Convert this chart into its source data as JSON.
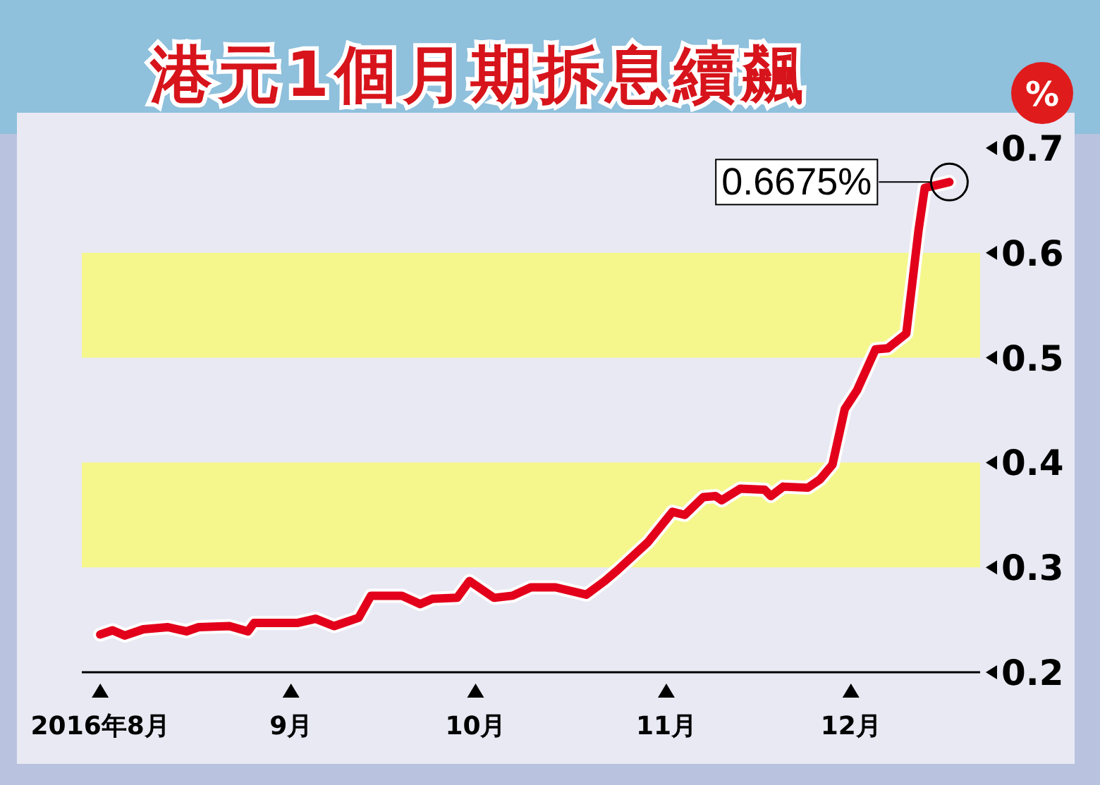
{
  "chart_data": {
    "type": "line",
    "title": "港元1個月期拆息續飆",
    "ylabel": "%",
    "x": [
      "2016-08-01",
      "2016-08-03",
      "2016-08-05",
      "2016-08-08",
      "2016-08-12",
      "2016-08-15",
      "2016-08-17",
      "2016-08-22",
      "2016-08-25",
      "2016-08-26",
      "2016-09-02",
      "2016-09-05",
      "2016-09-08",
      "2016-09-12",
      "2016-09-14",
      "2016-09-19",
      "2016-09-22",
      "2016-09-24",
      "2016-09-28",
      "2016-09-30",
      "2016-10-04",
      "2016-10-07",
      "2016-10-10",
      "2016-10-14",
      "2016-10-19",
      "2016-10-22",
      "2016-10-24",
      "2016-10-29",
      "2016-11-02",
      "2016-11-04",
      "2016-11-07",
      "2016-11-09",
      "2016-11-10",
      "2016-11-13",
      "2016-11-17",
      "2016-11-18",
      "2016-11-20",
      "2016-11-24",
      "2016-11-26",
      "2016-11-28",
      "2016-11-30",
      "2016-12-02",
      "2016-12-05",
      "2016-12-07",
      "2016-12-10",
      "2016-12-12",
      "2016-12-13",
      "2016-12-17"
    ],
    "values": [
      0.236,
      0.24,
      0.235,
      0.241,
      0.243,
      0.239,
      0.243,
      0.244,
      0.239,
      0.247,
      0.247,
      0.251,
      0.244,
      0.252,
      0.273,
      0.273,
      0.265,
      0.27,
      0.271,
      0.287,
      0.271,
      0.273,
      0.281,
      0.281,
      0.274,
      0.287,
      0.297,
      0.324,
      0.353,
      0.35,
      0.367,
      0.368,
      0.364,
      0.375,
      0.374,
      0.368,
      0.377,
      0.376,
      0.384,
      0.398,
      0.451,
      0.469,
      0.508,
      0.509,
      0.523,
      0.622,
      0.662,
      0.6675
    ],
    "color": "#e3001b",
    "xlim": [
      "2016-07-29",
      "2016-12-22"
    ],
    "ylim": [
      0.2,
      0.7
    ],
    "xticks": [
      {
        "value": "2016-08-01",
        "label": "2016年8月"
      },
      {
        "value": "2016-09-01",
        "label": "9月"
      },
      {
        "value": "2016-10-01",
        "label": "10月"
      },
      {
        "value": "2016-11-01",
        "label": "11月"
      },
      {
        "value": "2016-12-01",
        "label": "12月"
      }
    ],
    "yticks": [
      0.2,
      0.3,
      0.4,
      0.5,
      0.6,
      0.7
    ],
    "bands": [
      {
        "axis": "y",
        "from": 0.3,
        "to": 0.4,
        "color": "#f5f78c"
      },
      {
        "axis": "y",
        "from": 0.5,
        "to": 0.6,
        "color": "#f5f78c"
      }
    ],
    "annotations": [
      {
        "text": "0.6675%",
        "x": "2016-12-17",
        "y": 0.6675
      }
    ]
  }
}
